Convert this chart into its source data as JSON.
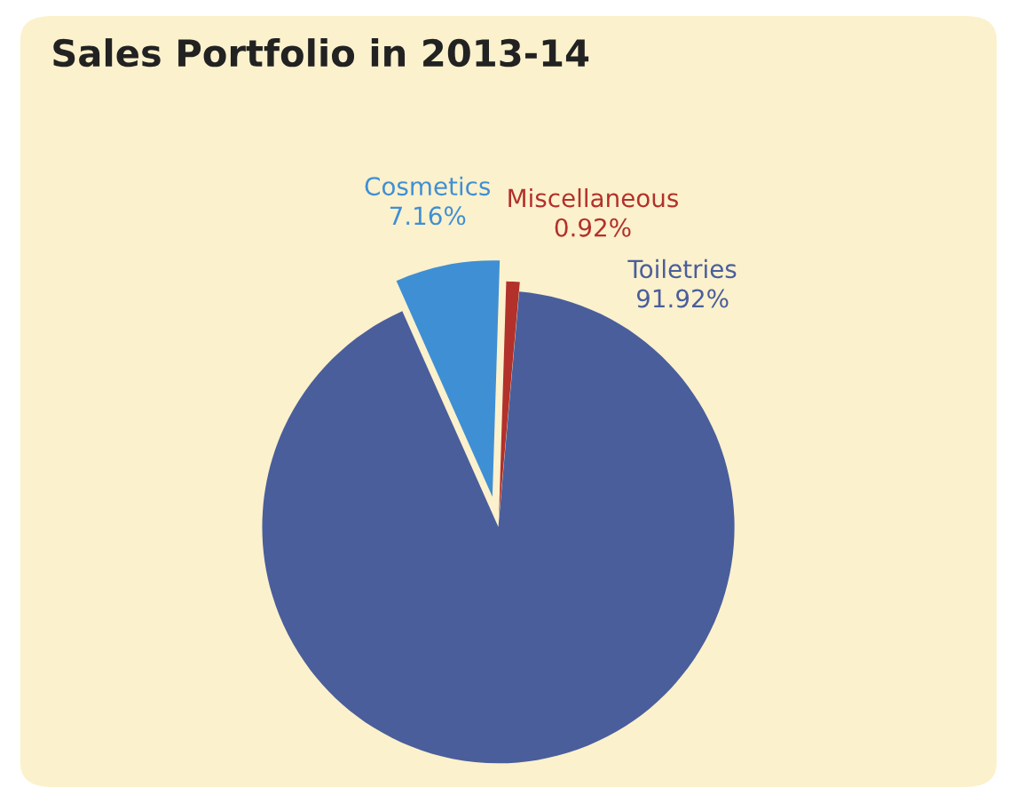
{
  "chart_data": {
    "type": "pie",
    "title": "Sales Portfolio in 2013-14",
    "categories": [
      "Cosmetics",
      "Miscellaneous",
      "Toiletries"
    ],
    "values": [
      7.16,
      0.92,
      91.92
    ],
    "colors": [
      "#3f8fd4",
      "#b2312b",
      "#4a5e9c"
    ],
    "value_labels": [
      "7.16%",
      "0.92%",
      "91.92%"
    ]
  }
}
